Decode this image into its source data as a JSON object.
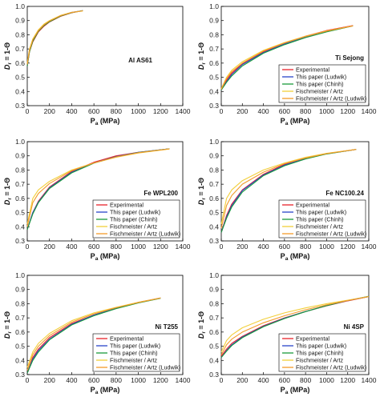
{
  "figure": {
    "series_styles": [
      {
        "name": "Experimental",
        "color": "#e8242b"
      },
      {
        "name": "This paper (Ludwik)",
        "color": "#2a44c8"
      },
      {
        "name": "This paper (Chinh)",
        "color": "#1a9a3a"
      },
      {
        "name": "Fischmeister / Artz",
        "color": "#f2cf3a"
      },
      {
        "name": "Fischmeister / Artz (Ludwik)",
        "color": "#f39b2a"
      }
    ]
  },
  "chart_data": [
    {
      "type": "line",
      "material": "Al AS61",
      "xlabel": "P_a (MPa)",
      "ylabel": "D_r = 1-Θ",
      "xlim": [
        0,
        1400
      ],
      "ylim": [
        0.3,
        1.0
      ],
      "xticks": [
        0,
        200,
        400,
        600,
        800,
        1000,
        1200,
        1400
      ],
      "yticks": [
        0.3,
        0.4,
        0.5,
        0.6,
        0.7,
        0.8,
        0.9,
        1.0
      ],
      "grid": false,
      "legend": "none",
      "series": [
        {
          "name": "Experimental",
          "x": [
            0,
            20,
            50,
            100,
            150,
            200,
            300,
            400,
            500
          ],
          "y": [
            0.58,
            0.68,
            0.75,
            0.82,
            0.86,
            0.89,
            0.93,
            0.955,
            0.97
          ]
        },
        {
          "name": "This paper (Ludwik)",
          "x": [
            0,
            20,
            50,
            100,
            150,
            200,
            300,
            400,
            500
          ],
          "y": [
            0.58,
            0.69,
            0.76,
            0.83,
            0.87,
            0.895,
            0.935,
            0.958,
            0.97
          ]
        },
        {
          "name": "This paper (Chinh)",
          "x": [
            0,
            20,
            50,
            100,
            150,
            200,
            300,
            400,
            500
          ],
          "y": [
            0.58,
            0.68,
            0.755,
            0.825,
            0.865,
            0.892,
            0.932,
            0.956,
            0.97
          ]
        },
        {
          "name": "Fischmeister / Artz",
          "x": [
            0,
            20,
            50,
            100,
            150,
            200,
            300,
            400,
            500
          ],
          "y": [
            0.6,
            0.7,
            0.77,
            0.835,
            0.875,
            0.9,
            0.937,
            0.958,
            0.968
          ]
        },
        {
          "name": "Fischmeister / Artz (Ludwik)",
          "x": [
            0,
            20,
            50,
            100,
            150,
            200,
            300,
            400,
            500
          ],
          "y": [
            0.59,
            0.69,
            0.765,
            0.83,
            0.87,
            0.897,
            0.935,
            0.957,
            0.969
          ]
        }
      ]
    },
    {
      "type": "line",
      "material": "Ti Sejong",
      "xlabel": "P_a (MPa)",
      "ylabel": "D_r = 1-Θ",
      "xlim": [
        0,
        1400
      ],
      "ylim": [
        0.3,
        1.0
      ],
      "xticks": [
        0,
        200,
        400,
        600,
        800,
        1000,
        1200,
        1400
      ],
      "yticks": [
        0.3,
        0.4,
        0.5,
        0.6,
        0.7,
        0.8,
        0.9,
        1.0
      ],
      "grid": false,
      "legend": "bottom-right",
      "series": [
        {
          "name": "Experimental",
          "x": [
            0,
            50,
            100,
            200,
            400,
            600,
            800,
            1000,
            1250
          ],
          "y": [
            0.41,
            0.48,
            0.53,
            0.595,
            0.68,
            0.74,
            0.79,
            0.83,
            0.865
          ]
        },
        {
          "name": "This paper (Ludwik)",
          "x": [
            0,
            50,
            100,
            200,
            400,
            600,
            800,
            1000,
            1250
          ],
          "y": [
            0.41,
            0.47,
            0.52,
            0.59,
            0.675,
            0.735,
            0.785,
            0.825,
            0.863
          ]
        },
        {
          "name": "This paper (Chinh)",
          "x": [
            0,
            50,
            100,
            200,
            400,
            600,
            800,
            1000,
            1250
          ],
          "y": [
            0.41,
            0.465,
            0.51,
            0.58,
            0.67,
            0.73,
            0.78,
            0.82,
            0.862
          ]
        },
        {
          "name": "Fischmeister / Artz",
          "x": [
            0,
            50,
            100,
            200,
            400,
            600,
            800,
            1000,
            1250
          ],
          "y": [
            0.42,
            0.5,
            0.55,
            0.61,
            0.69,
            0.745,
            0.79,
            0.828,
            0.863
          ]
        },
        {
          "name": "Fischmeister / Artz (Ludwik)",
          "x": [
            0,
            50,
            100,
            200,
            400,
            600,
            800,
            1000,
            1250
          ],
          "y": [
            0.415,
            0.49,
            0.54,
            0.6,
            0.685,
            0.742,
            0.788,
            0.826,
            0.863
          ]
        }
      ]
    },
    {
      "type": "line",
      "material": "Fe WPL200",
      "xlabel": "P_a (MPa)",
      "ylabel": "D_r = 1-Θ",
      "xlim": [
        0,
        1400
      ],
      "ylim": [
        0.3,
        1.0
      ],
      "xticks": [
        0,
        200,
        400,
        600,
        800,
        1000,
        1200,
        1400
      ],
      "yticks": [
        0.3,
        0.4,
        0.5,
        0.6,
        0.7,
        0.8,
        0.9,
        1.0
      ],
      "grid": false,
      "legend": "bottom-right",
      "series": [
        {
          "name": "Experimental",
          "x": [
            0,
            50,
            100,
            200,
            400,
            600,
            800,
            1000,
            1280
          ],
          "y": [
            0.38,
            0.5,
            0.58,
            0.68,
            0.79,
            0.855,
            0.9,
            0.925,
            0.95
          ]
        },
        {
          "name": "This paper (Ludwik)",
          "x": [
            0,
            50,
            100,
            200,
            400,
            600,
            800,
            1000,
            1280
          ],
          "y": [
            0.38,
            0.5,
            0.575,
            0.675,
            0.785,
            0.85,
            0.895,
            0.925,
            0.95
          ]
        },
        {
          "name": "This paper (Chinh)",
          "x": [
            0,
            50,
            100,
            200,
            400,
            600,
            800,
            1000,
            1280
          ],
          "y": [
            0.38,
            0.49,
            0.57,
            0.67,
            0.78,
            0.848,
            0.893,
            0.924,
            0.95
          ]
        },
        {
          "name": "Fischmeister / Artz",
          "x": [
            0,
            50,
            100,
            200,
            400,
            600,
            800,
            1000,
            1280
          ],
          "y": [
            0.42,
            0.6,
            0.66,
            0.72,
            0.8,
            0.85,
            0.89,
            0.92,
            0.948
          ]
        },
        {
          "name": "Fischmeister / Artz (Ludwik)",
          "x": [
            0,
            50,
            100,
            200,
            400,
            600,
            800,
            1000,
            1280
          ],
          "y": [
            0.4,
            0.57,
            0.635,
            0.705,
            0.795,
            0.85,
            0.892,
            0.922,
            0.949
          ]
        }
      ]
    },
    {
      "type": "line",
      "material": "Fe NC100.24",
      "xlabel": "P_a (MPa)",
      "ylabel": "D_r = 1-Θ",
      "xlim": [
        0,
        1400
      ],
      "ylim": [
        0.3,
        1.0
      ],
      "xticks": [
        0,
        200,
        400,
        600,
        800,
        1000,
        1200,
        1400
      ],
      "yticks": [
        0.3,
        0.4,
        0.5,
        0.6,
        0.7,
        0.8,
        0.9,
        1.0
      ],
      "grid": false,
      "legend": "bottom-right",
      "series": [
        {
          "name": "Experimental",
          "x": [
            0,
            50,
            100,
            200,
            400,
            600,
            800,
            1000,
            1280
          ],
          "y": [
            0.36,
            0.48,
            0.56,
            0.66,
            0.77,
            0.84,
            0.885,
            0.915,
            0.945
          ]
        },
        {
          "name": "This paper (Ludwik)",
          "x": [
            0,
            50,
            100,
            200,
            400,
            600,
            800,
            1000,
            1280
          ],
          "y": [
            0.36,
            0.47,
            0.55,
            0.655,
            0.765,
            0.835,
            0.88,
            0.915,
            0.945
          ]
        },
        {
          "name": "This paper (Chinh)",
          "x": [
            0,
            50,
            100,
            200,
            400,
            600,
            800,
            1000,
            1280
          ],
          "y": [
            0.36,
            0.46,
            0.54,
            0.645,
            0.76,
            0.83,
            0.878,
            0.913,
            0.945
          ]
        },
        {
          "name": "Fischmeister / Artz",
          "x": [
            0,
            50,
            100,
            200,
            400,
            600,
            800,
            1000,
            1280
          ],
          "y": [
            0.42,
            0.6,
            0.66,
            0.725,
            0.8,
            0.85,
            0.89,
            0.918,
            0.945
          ]
        },
        {
          "name": "Fischmeister / Artz (Ludwik)",
          "x": [
            0,
            50,
            100,
            200,
            400,
            600,
            800,
            1000,
            1280
          ],
          "y": [
            0.39,
            0.55,
            0.62,
            0.7,
            0.785,
            0.845,
            0.885,
            0.916,
            0.945
          ]
        }
      ]
    },
    {
      "type": "line",
      "material": "Ni T255",
      "xlabel": "P_a (MPa)",
      "ylabel": "D_r = 1-Θ",
      "xlim": [
        0,
        1400
      ],
      "ylim": [
        0.3,
        1.0
      ],
      "xticks": [
        0,
        200,
        400,
        600,
        800,
        1000,
        1200,
        1400
      ],
      "yticks": [
        0.3,
        0.4,
        0.5,
        0.6,
        0.7,
        0.8,
        0.9,
        1.0
      ],
      "grid": false,
      "legend": "bottom-right",
      "series": [
        {
          "name": "Experimental",
          "x": [
            0,
            50,
            100,
            200,
            400,
            600,
            800,
            1000,
            1200
          ],
          "y": [
            0.31,
            0.42,
            0.48,
            0.56,
            0.66,
            0.72,
            0.77,
            0.81,
            0.84
          ]
        },
        {
          "name": "This paper (Ludwik)",
          "x": [
            0,
            50,
            100,
            200,
            400,
            600,
            800,
            1000,
            1200
          ],
          "y": [
            0.31,
            0.41,
            0.47,
            0.55,
            0.655,
            0.72,
            0.77,
            0.808,
            0.84
          ]
        },
        {
          "name": "This paper (Chinh)",
          "x": [
            0,
            50,
            100,
            200,
            400,
            600,
            800,
            1000,
            1200
          ],
          "y": [
            0.31,
            0.4,
            0.46,
            0.545,
            0.65,
            0.715,
            0.765,
            0.805,
            0.838
          ]
        },
        {
          "name": "Fischmeister / Artz",
          "x": [
            0,
            50,
            100,
            200,
            400,
            600,
            800,
            1000,
            1200
          ],
          "y": [
            0.35,
            0.46,
            0.52,
            0.59,
            0.68,
            0.735,
            0.775,
            0.81,
            0.84
          ]
        },
        {
          "name": "Fischmeister / Artz (Ludwik)",
          "x": [
            0,
            50,
            100,
            200,
            400,
            600,
            800,
            1000,
            1200
          ],
          "y": [
            0.33,
            0.44,
            0.5,
            0.575,
            0.67,
            0.728,
            0.772,
            0.808,
            0.84
          ]
        }
      ]
    },
    {
      "type": "line",
      "material": "Ni 4SP",
      "xlabel": "P_a (MPa)",
      "ylabel": "D_r = 1-Θ",
      "xlim": [
        0,
        1400
      ],
      "ylim": [
        0.3,
        1.0
      ],
      "xticks": [
        0,
        200,
        400,
        600,
        800,
        1000,
        1200,
        1400
      ],
      "yticks": [
        0.3,
        0.4,
        0.5,
        0.6,
        0.7,
        0.8,
        0.9,
        1.0
      ],
      "grid": false,
      "legend": "bottom-right",
      "series": [
        {
          "name": "Experimental",
          "x": [
            0,
            50,
            100,
            200,
            400,
            600,
            800,
            1000,
            1200,
            1400
          ],
          "y": [
            0.43,
            0.48,
            0.52,
            0.57,
            0.645,
            0.7,
            0.745,
            0.785,
            0.82,
            0.85
          ]
        },
        {
          "name": "This paper (Ludwik)",
          "x": [
            0,
            50,
            100,
            200,
            400,
            600,
            800,
            1000,
            1200,
            1400
          ],
          "y": [
            0.42,
            0.47,
            0.51,
            0.565,
            0.64,
            0.698,
            0.745,
            0.786,
            0.822,
            0.85
          ]
        },
        {
          "name": "This paper (Chinh)",
          "x": [
            0,
            50,
            100,
            200,
            400,
            600,
            800,
            1000,
            1200,
            1400
          ],
          "y": [
            0.42,
            0.465,
            0.505,
            0.56,
            0.637,
            0.695,
            0.744,
            0.786,
            0.823,
            0.852
          ]
        },
        {
          "name": "Fischmeister / Artz",
          "x": [
            0,
            50,
            100,
            200,
            400,
            600,
            800,
            1000,
            1200,
            1400
          ],
          "y": [
            0.46,
            0.54,
            0.58,
            0.63,
            0.69,
            0.735,
            0.77,
            0.8,
            0.825,
            0.85
          ]
        },
        {
          "name": "Fischmeister / Artz (Ludwik)",
          "x": [
            0,
            50,
            100,
            200,
            400,
            600,
            800,
            1000,
            1200,
            1400
          ],
          "y": [
            0.44,
            0.51,
            0.55,
            0.6,
            0.665,
            0.715,
            0.757,
            0.792,
            0.822,
            0.85
          ]
        }
      ]
    }
  ]
}
